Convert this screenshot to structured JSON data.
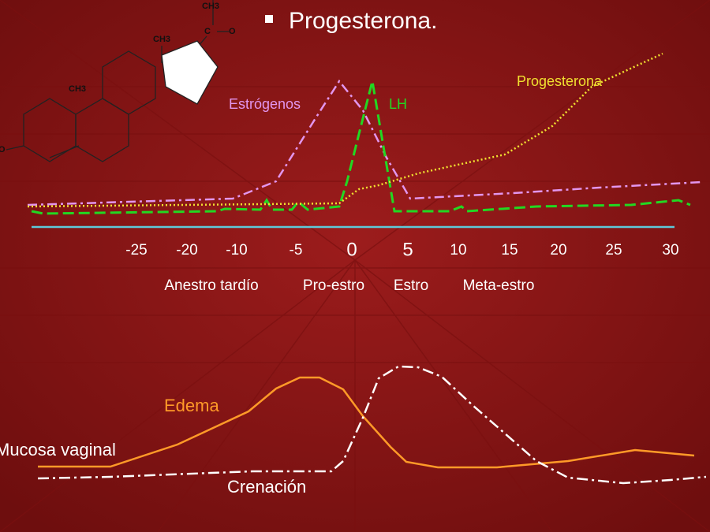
{
  "title": "Progesterona.",
  "molecule": {
    "labels": [
      "CH3",
      "CH3",
      "CH3",
      "C",
      "O",
      "O"
    ]
  },
  "curve_labels": {
    "estrogens": "Estrógenos",
    "lh": "LH",
    "progesterone": "Progesterona",
    "edema": "Edema",
    "mucosa": "Mucosa vaginal",
    "crenation": "Crenación"
  },
  "axis_ticks": [
    "-25",
    "-20",
    "-10",
    "-5",
    "0",
    "5",
    "10",
    "15",
    "20",
    "25",
    "30"
  ],
  "phases": [
    "Anestro tardío",
    "Pro-estro",
    "Estro",
    "Meta-estro"
  ]
}
